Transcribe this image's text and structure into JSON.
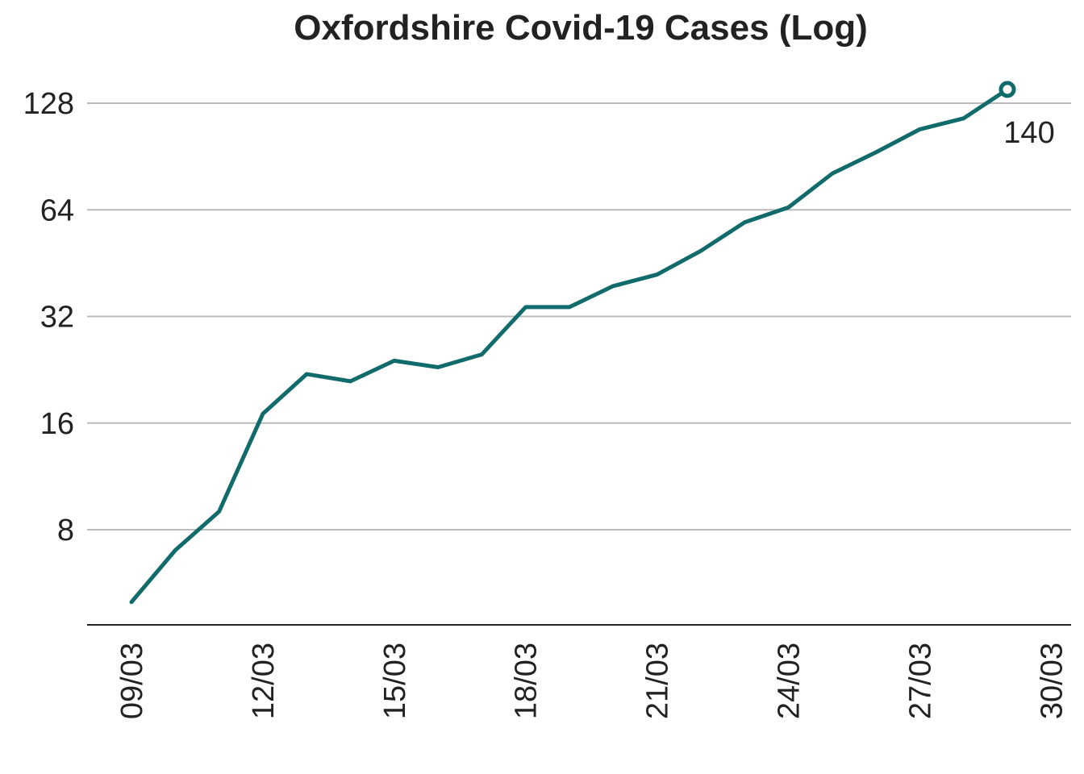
{
  "chart_data": {
    "type": "line",
    "title": "Oxfordshire Covid-19 Cases (Log)",
    "xlabel": "",
    "ylabel": "",
    "y_scale": "log2",
    "ylim": [
      4.5,
      150
    ],
    "y_ticks": [
      8,
      16,
      32,
      64,
      128
    ],
    "y_tick_labels": [
      "8",
      "16",
      "32",
      "64",
      "128"
    ],
    "x_tick_labels": [
      "09/03",
      "12/03",
      "15/03",
      "18/03",
      "21/03",
      "24/03",
      "27/03",
      "30/03"
    ],
    "x": [
      "09/03",
      "10/03",
      "11/03",
      "12/03",
      "13/03",
      "14/03",
      "15/03",
      "16/03",
      "17/03",
      "18/03",
      "19/03",
      "20/03",
      "21/03",
      "22/03",
      "23/03",
      "24/03",
      "25/03",
      "26/03",
      "27/03",
      "28/03",
      "29/03"
    ],
    "series": [
      {
        "values": [
          5,
          7,
          9,
          17,
          22,
          21,
          24,
          23,
          25,
          34,
          34,
          39,
          42,
          49,
          59,
          65,
          81,
          93,
          108,
          116,
          140
        ],
        "color": "#126b6b"
      }
    ],
    "end_label": "140",
    "grid": true,
    "gridline_color": "#bbbbbb",
    "legend": "none"
  }
}
